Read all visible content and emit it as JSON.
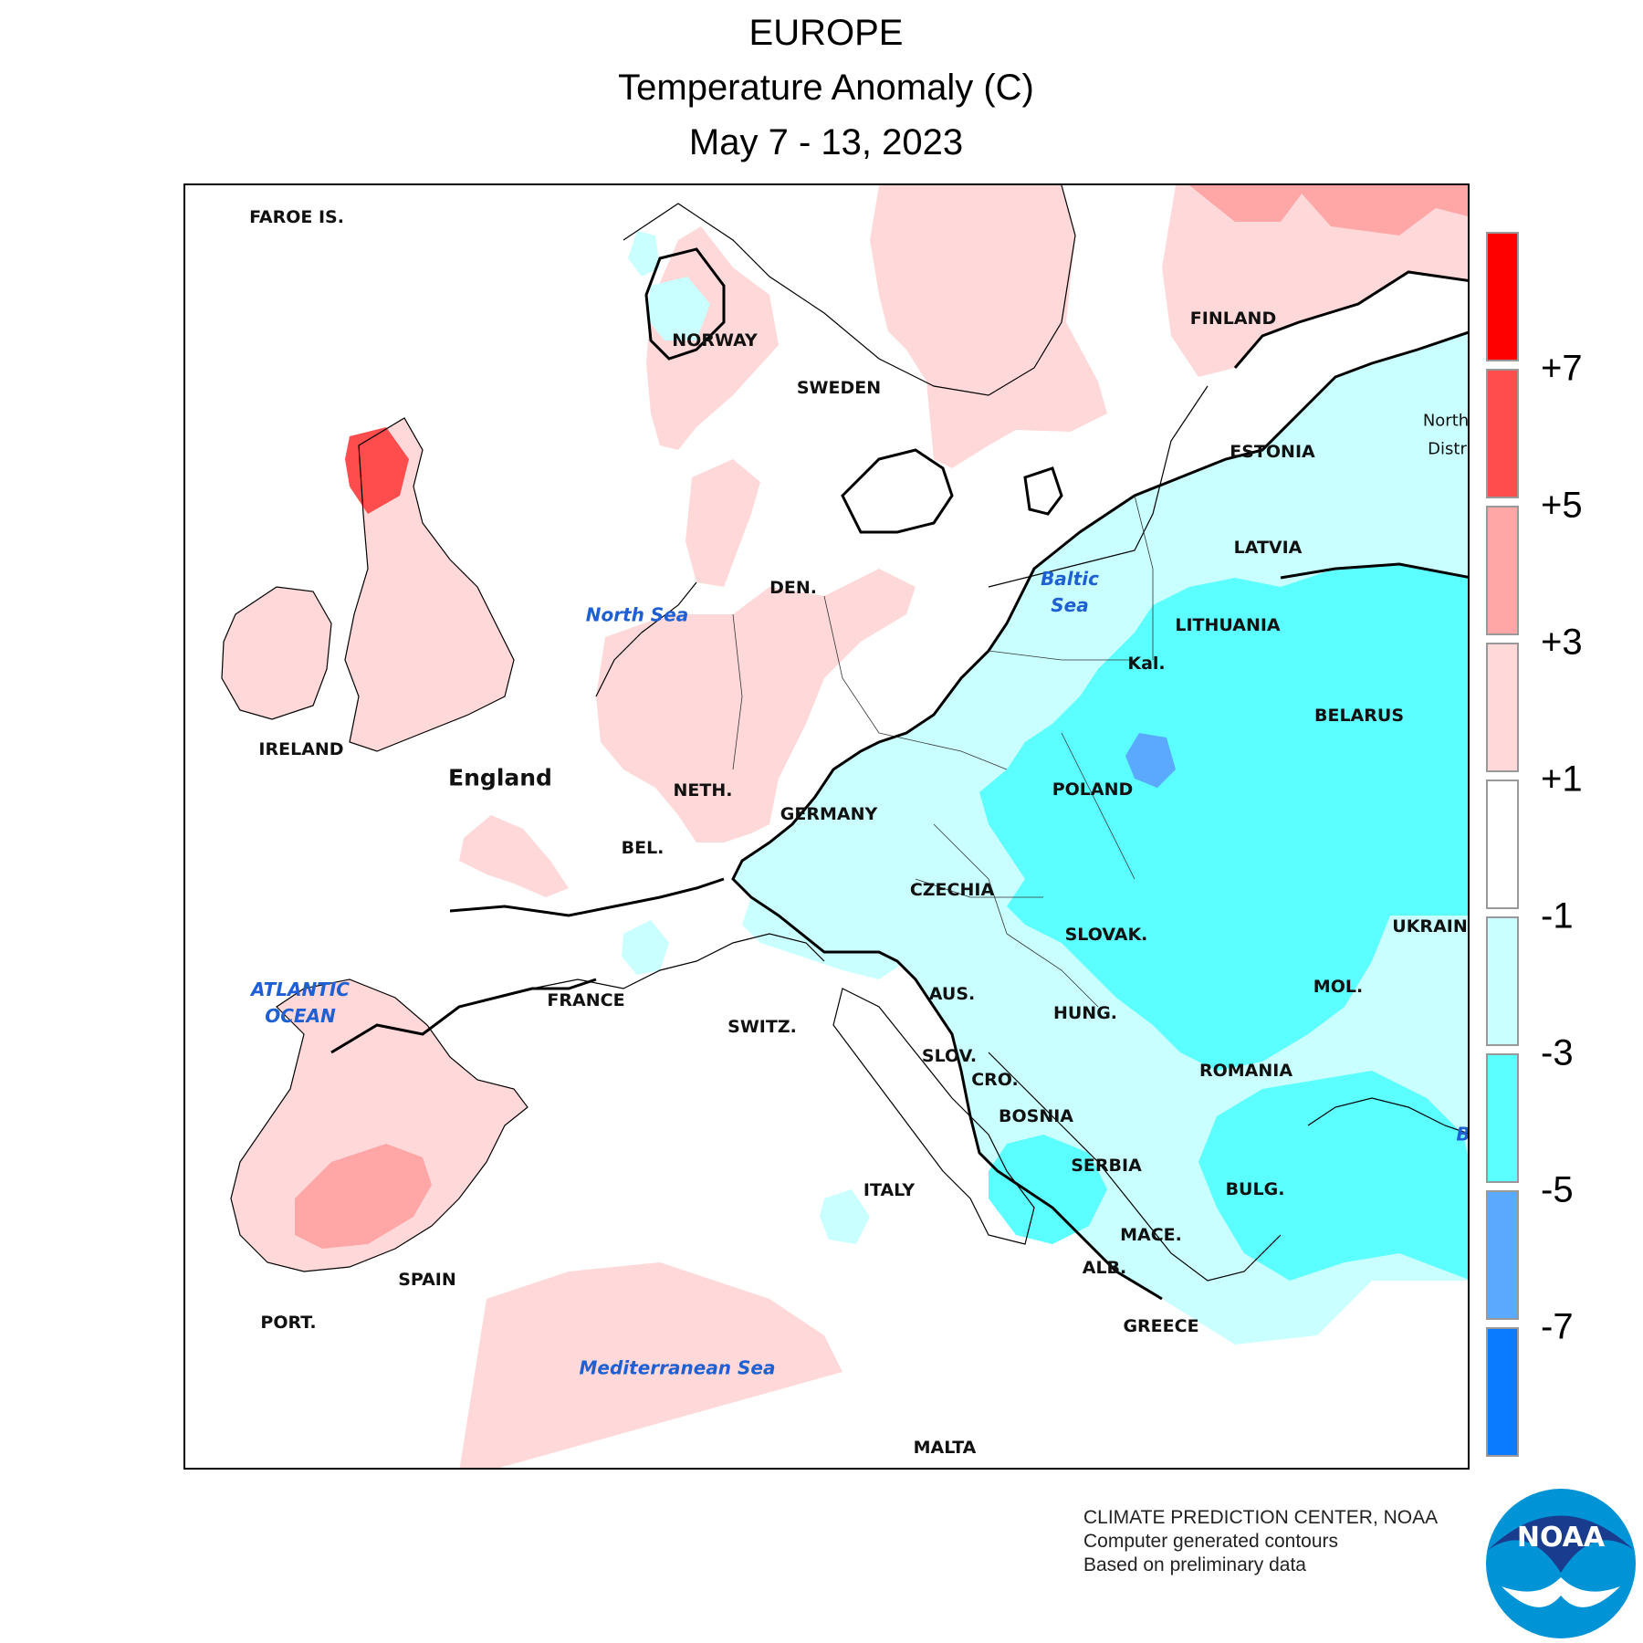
{
  "title": {
    "region": "EUROPE",
    "variable": "Temperature Anomaly (C)",
    "period": "May 7 - 13, 2023"
  },
  "legend": {
    "colors": [
      "#ff0000",
      "#ff4d4d",
      "#ffa6a6",
      "#ffd9d9",
      "#ffffff",
      "#c9ffff",
      "#5cffff",
      "#5aa9ff",
      "#0a7bff"
    ],
    "tick_labels": [
      "+7",
      "+5",
      "+3",
      "+1",
      "-1",
      "-3",
      "-5",
      "-7"
    ]
  },
  "countries": [
    "FAROE IS.",
    "NORWAY",
    "SWEDEN",
    "FINLAND",
    "ESTONIA",
    "LATVIA",
    "LITHUANIA",
    "Kal.",
    "DEN.",
    "IRELAND",
    "England",
    "NETH.",
    "BEL.",
    "GERMANY",
    "POLAND",
    "BELARUS",
    "CZECHIA",
    "SLOVAK.",
    "UKRAINE",
    "FRANCE",
    "SWITZ.",
    "AUS.",
    "SLOV.",
    "HUNG.",
    "MOL.",
    "CRO.",
    "BOSNIA",
    "ROMANIA",
    "SERBIA",
    "BULG.",
    "ITALY",
    "MACE.",
    "ALB.",
    "SPAIN",
    "PORT.",
    "GREECE",
    "MALTA",
    "North",
    "Distri",
    "B"
  ],
  "seas": [
    "North Sea",
    "Baltic Sea",
    "ATLANTIC OCEAN",
    "Mediterranean Sea"
  ],
  "credit": {
    "line1": "CLIMATE PREDICTION CENTER, NOAA",
    "line2": "Computer generated contours",
    "line3": "Based on preliminary data"
  },
  "logo_text": "NOAA",
  "icons": [
    "noaa-logo"
  ]
}
